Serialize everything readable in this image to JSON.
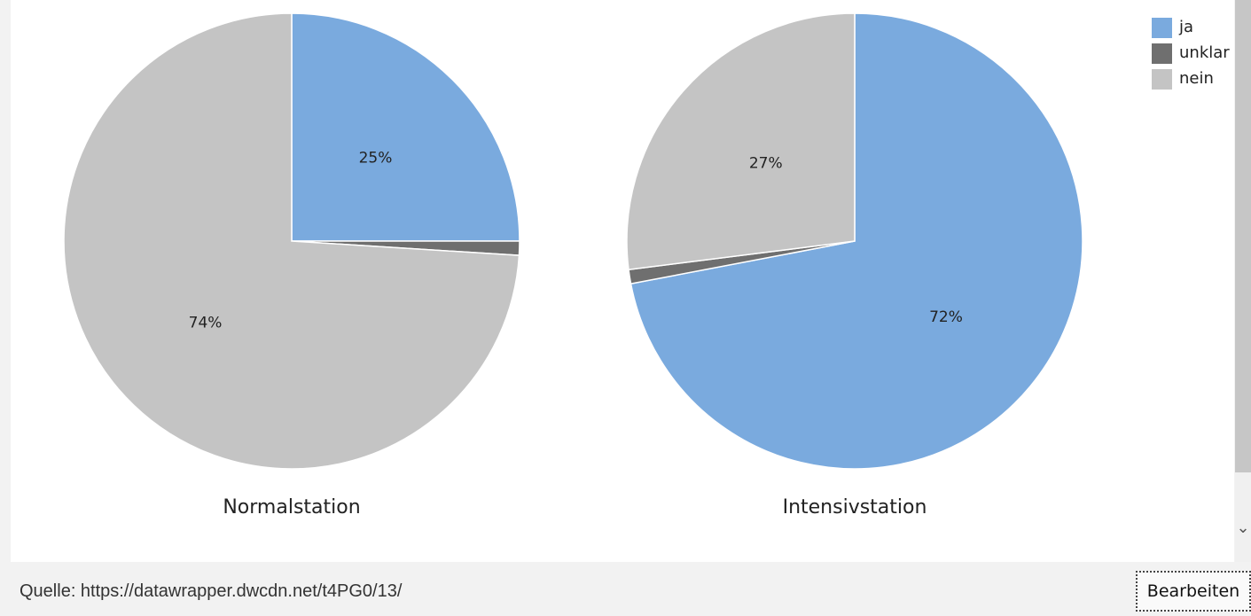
{
  "chart_data": [
    {
      "type": "pie",
      "title": "Normalstation",
      "slices": [
        {
          "label": "ja",
          "value": 25,
          "display": "25%"
        },
        {
          "label": "unklar",
          "value": 1,
          "display": ""
        },
        {
          "label": "nein",
          "value": 74,
          "display": "74%"
        }
      ]
    },
    {
      "type": "pie",
      "title": "Intensivstation",
      "slices": [
        {
          "label": "ja",
          "value": 72,
          "display": "72%"
        },
        {
          "label": "unklar",
          "value": 1,
          "display": ""
        },
        {
          "label": "nein",
          "value": 27,
          "display": "27%"
        }
      ]
    }
  ],
  "legend": {
    "placement": "top-right",
    "items": [
      {
        "label": "ja",
        "color": "#7aaade"
      },
      {
        "label": "unklar",
        "color": "#6f6f6f"
      },
      {
        "label": "nein",
        "color": "#c4c4c4"
      }
    ]
  },
  "footer": {
    "source": "Quelle: https://datawrapper.dwcdn.net/t4PG0/13/",
    "edit_label": "Bearbeiten"
  },
  "scrollbar": {
    "down_arrow": "⌄"
  }
}
